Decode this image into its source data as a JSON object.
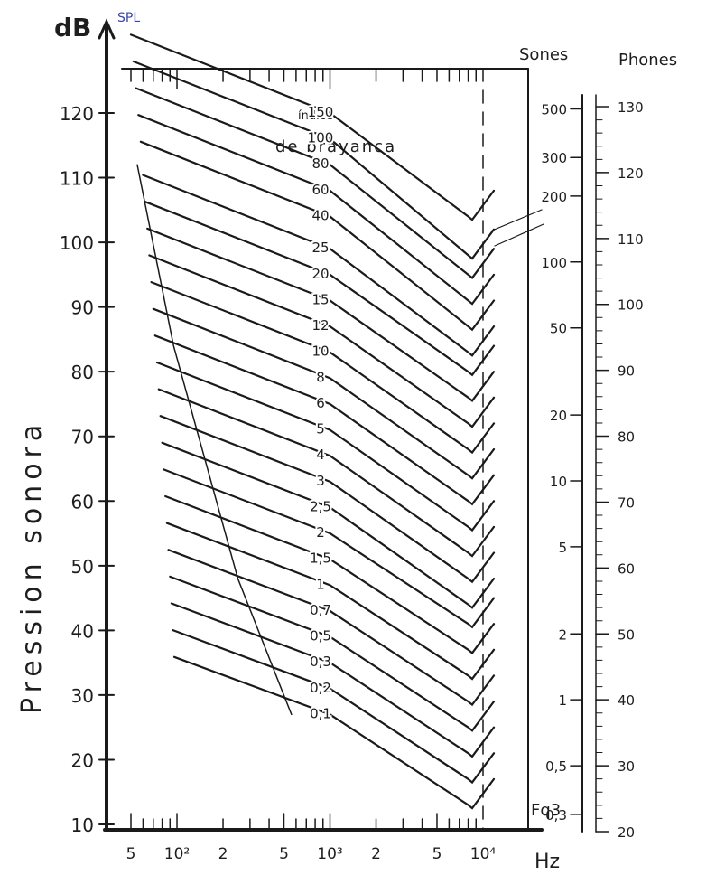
{
  "chart_data": {
    "type": "line",
    "y_unit_label": "dB",
    "y_unit_note": "SPL",
    "ylabel": "Pression sonora",
    "x_unit_label": "Hz",
    "x_scale": "log",
    "xlim": [
      40,
      12500
    ],
    "ylim": [
      10,
      130
    ],
    "x_tick_labels": [
      "5",
      "10²",
      "2",
      "5",
      "10³",
      "2",
      "5",
      "10⁴"
    ],
    "y_tick_labels": [
      "120",
      "110",
      "100",
      "90",
      "80",
      "70",
      "60",
      "50",
      "40",
      "30",
      "20",
      "10"
    ],
    "y_ticks": [
      120,
      110,
      100,
      90,
      80,
      70,
      60,
      50,
      40,
      30,
      20,
      10
    ],
    "curve_title_line1": "índice",
    "curve_title_line2": "de brayanca",
    "curve_labels": [
      "150",
      "100",
      "80",
      "60",
      "40",
      "25",
      "20",
      "15",
      "12",
      "10",
      "8",
      "6",
      "5",
      "4",
      "3",
      "2,5",
      "2",
      "1,5",
      "1",
      "0,7",
      "0,5",
      "0,3",
      "0,2",
      "0,1"
    ],
    "series": [
      {
        "values_at_1000Hz": 120,
        "values_at_8000Hz": 104
      },
      {
        "values_at_1000Hz": 116,
        "values_at_8000Hz": 98
      },
      {
        "values_at_1000Hz": 112,
        "values_at_8000Hz": 95
      },
      {
        "values_at_1000Hz": 108,
        "values_at_8000Hz": 91
      },
      {
        "values_at_1000Hz": 104,
        "values_at_8000Hz": 87
      },
      {
        "values_at_1000Hz": 99,
        "values_at_8000Hz": 83
      },
      {
        "values_at_1000Hz": 95,
        "values_at_8000Hz": 80
      },
      {
        "values_at_1000Hz": 91,
        "values_at_8000Hz": 76
      },
      {
        "values_at_1000Hz": 87,
        "values_at_8000Hz": 72
      },
      {
        "values_at_1000Hz": 83,
        "values_at_8000Hz": 68
      },
      {
        "values_at_1000Hz": 79,
        "values_at_8000Hz": 64
      },
      {
        "values_at_1000Hz": 75,
        "values_at_8000Hz": 60
      },
      {
        "values_at_1000Hz": 71,
        "values_at_8000Hz": 56
      },
      {
        "values_at_1000Hz": 67,
        "values_at_8000Hz": 52
      },
      {
        "values_at_1000Hz": 63,
        "values_at_8000Hz": 48
      },
      {
        "values_at_1000Hz": 59,
        "values_at_8000Hz": 44
      },
      {
        "values_at_1000Hz": 55,
        "values_at_8000Hz": 41
      },
      {
        "values_at_1000Hz": 51,
        "values_at_8000Hz": 37
      },
      {
        "values_at_1000Hz": 47,
        "values_at_8000Hz": 33
      },
      {
        "values_at_1000Hz": 43,
        "values_at_8000Hz": 29
      },
      {
        "values_at_1000Hz": 39,
        "values_at_8000Hz": 25
      },
      {
        "values_at_1000Hz": 35,
        "values_at_8000Hz": 21
      },
      {
        "values_at_1000Hz": 31,
        "values_at_8000Hz": 17
      },
      {
        "values_at_1000Hz": 27,
        "values_at_8000Hz": 13
      }
    ],
    "right_axis_sones": {
      "title": "Sones",
      "tick_labels": [
        "500",
        "300",
        "200",
        "100",
        "50",
        "20",
        "10",
        "5",
        "2",
        "1",
        "0,5",
        "0,3"
      ],
      "values": [
        500,
        300,
        200,
        100,
        50,
        20,
        10,
        5,
        2,
        1,
        0.5,
        0.3
      ]
    },
    "right_axis_phones": {
      "title": "Phones",
      "tick_labels": [
        "130",
        "120",
        "110",
        "100",
        "90",
        "80",
        "70",
        "60",
        "50",
        "40",
        "30",
        "20"
      ],
      "values": [
        130,
        120,
        110,
        100,
        90,
        80,
        70,
        60,
        50,
        40,
        30,
        20
      ]
    },
    "bottom_right_label": "Fq3",
    "grid": false,
    "legend": "none"
  }
}
